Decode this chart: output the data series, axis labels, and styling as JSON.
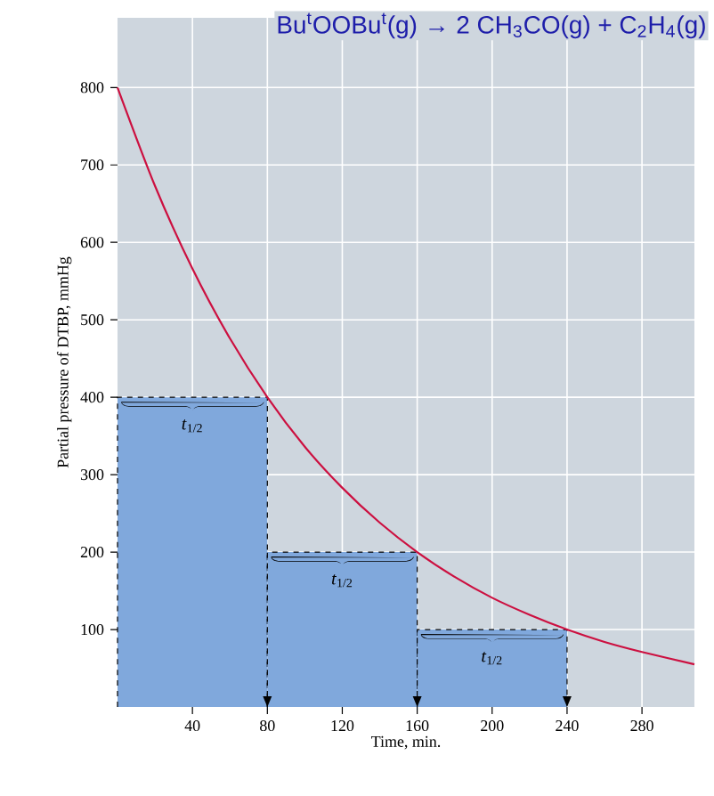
{
  "chart_data": {
    "type": "line",
    "title": "Bu$^{t}$OOBu$^{t}$(g) → 2 CH$_{3}$CO(g) + C$_{2}$H$_{4}$(g)",
    "xlabel": "Time, min.",
    "ylabel": "Partial pressure of DTBP, mmHg",
    "series": [
      {
        "type": "histogram",
        "bins": [
          0,
          80,
          160,
          240
        ],
        "values": [
          400,
          200,
          100
        ],
        "color": "#80a8dc"
      },
      {
        "color": "#cc1040",
        "x": [
          0,
          20,
          40,
          60,
          80,
          100,
          120,
          140,
          160,
          180,
          200,
          220,
          240,
          260,
          280,
          308
        ],
        "values": [
          800,
          673,
          566,
          476,
          400,
          336,
          283,
          238,
          200,
          168,
          141,
          119,
          100,
          84,
          71,
          55
        ]
      }
    ],
    "annotations": [
      "*t*$_{1/2}$",
      "*t*$_{1/2}$",
      "*t*$_{1/2}$"
    ],
    "xlim": [
      0,
      308
    ],
    "ylim": [
      0,
      890
    ],
    "xticks": [
      40,
      80,
      120,
      160,
      200,
      240,
      280
    ],
    "yticks": [
      100,
      200,
      300,
      400,
      500,
      600,
      700,
      800
    ],
    "grid": true,
    "marker": "none",
    "line_style": "solid"
  }
}
